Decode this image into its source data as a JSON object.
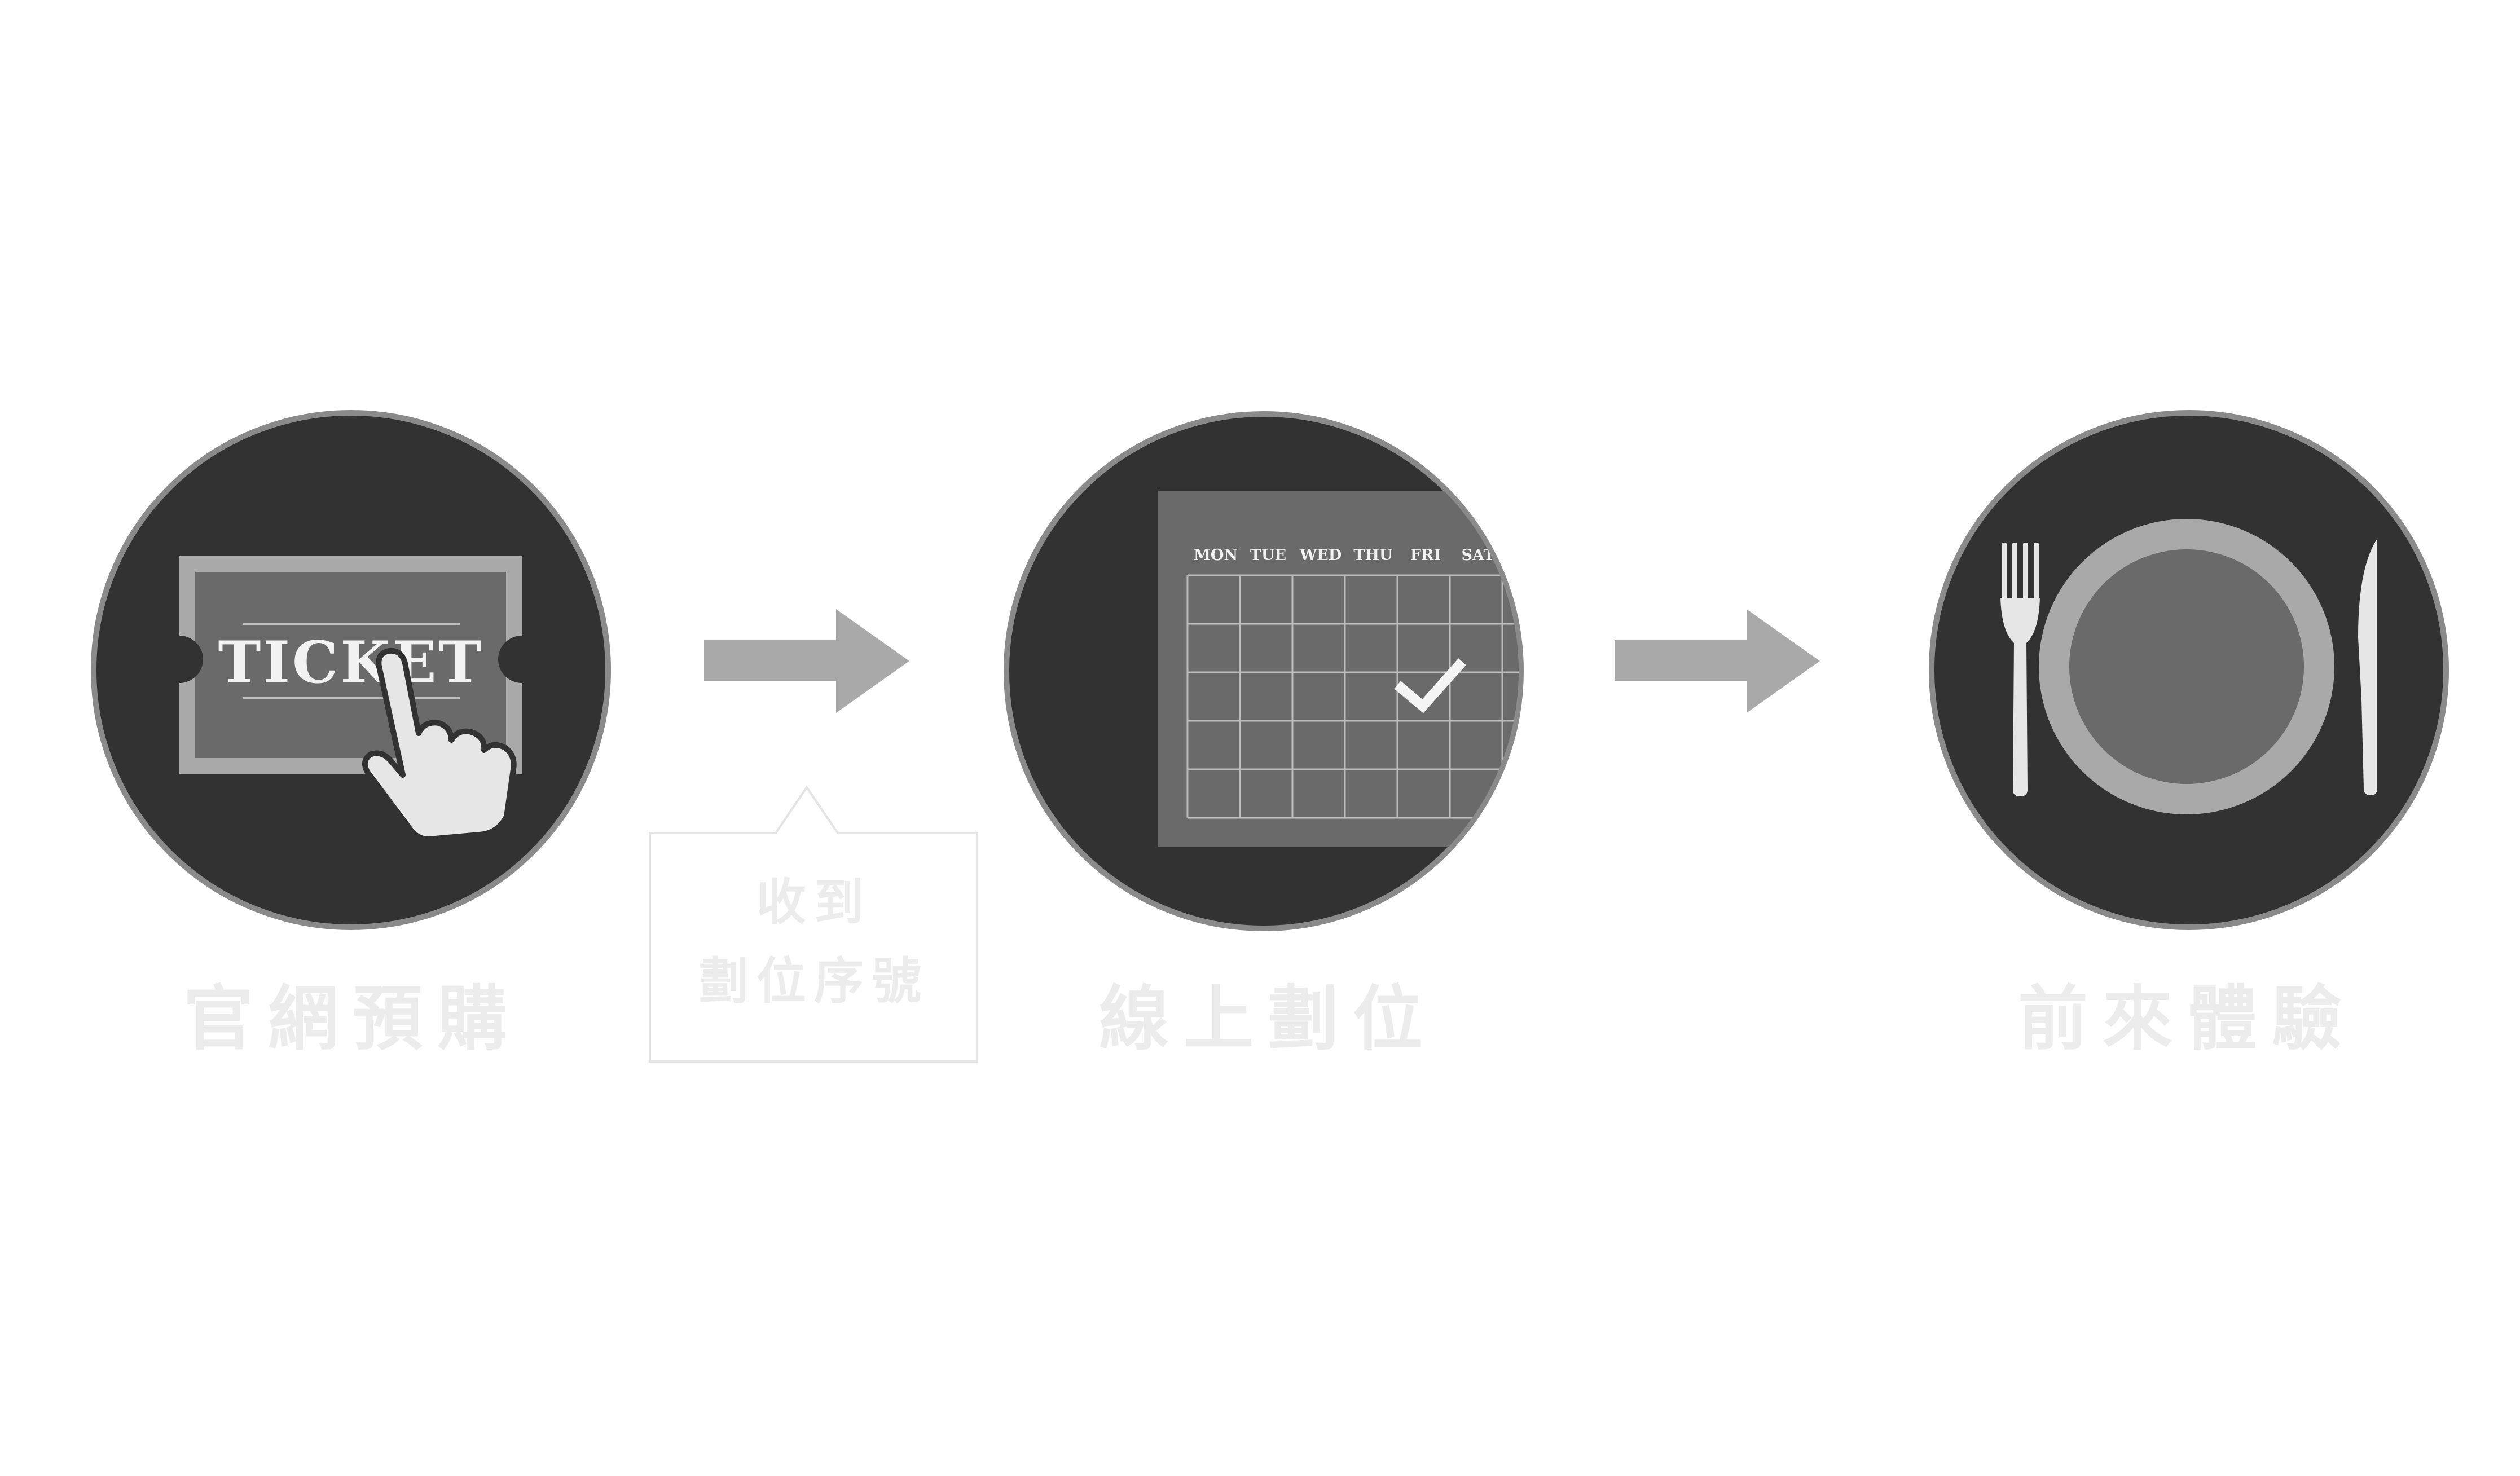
{
  "colors": {
    "background": "#ffffff",
    "circle_fill": "#323232",
    "circle_ring": "#8a8a8a",
    "mid_gray": "#6a6a6a",
    "light_gray": "#a9a9a9",
    "label_text": "#ececec",
    "icon_white": "#e6e6e6"
  },
  "steps": [
    {
      "label": "官網預購",
      "icon": "ticket-touch-icon"
    },
    {
      "label": "線上劃位",
      "icon": "calendar-check-icon"
    },
    {
      "label": "前來體驗",
      "icon": "plate-cutlery-icon"
    }
  ],
  "ticket": {
    "text": "TICKET"
  },
  "calendar": {
    "days": [
      "MON",
      "TUE",
      "WED",
      "THU",
      "FRI",
      "SAT"
    ]
  },
  "note": {
    "lines": [
      "收到",
      "劃位序號"
    ]
  },
  "arrows": [
    "arrow-right-icon",
    "arrow-right-icon"
  ]
}
